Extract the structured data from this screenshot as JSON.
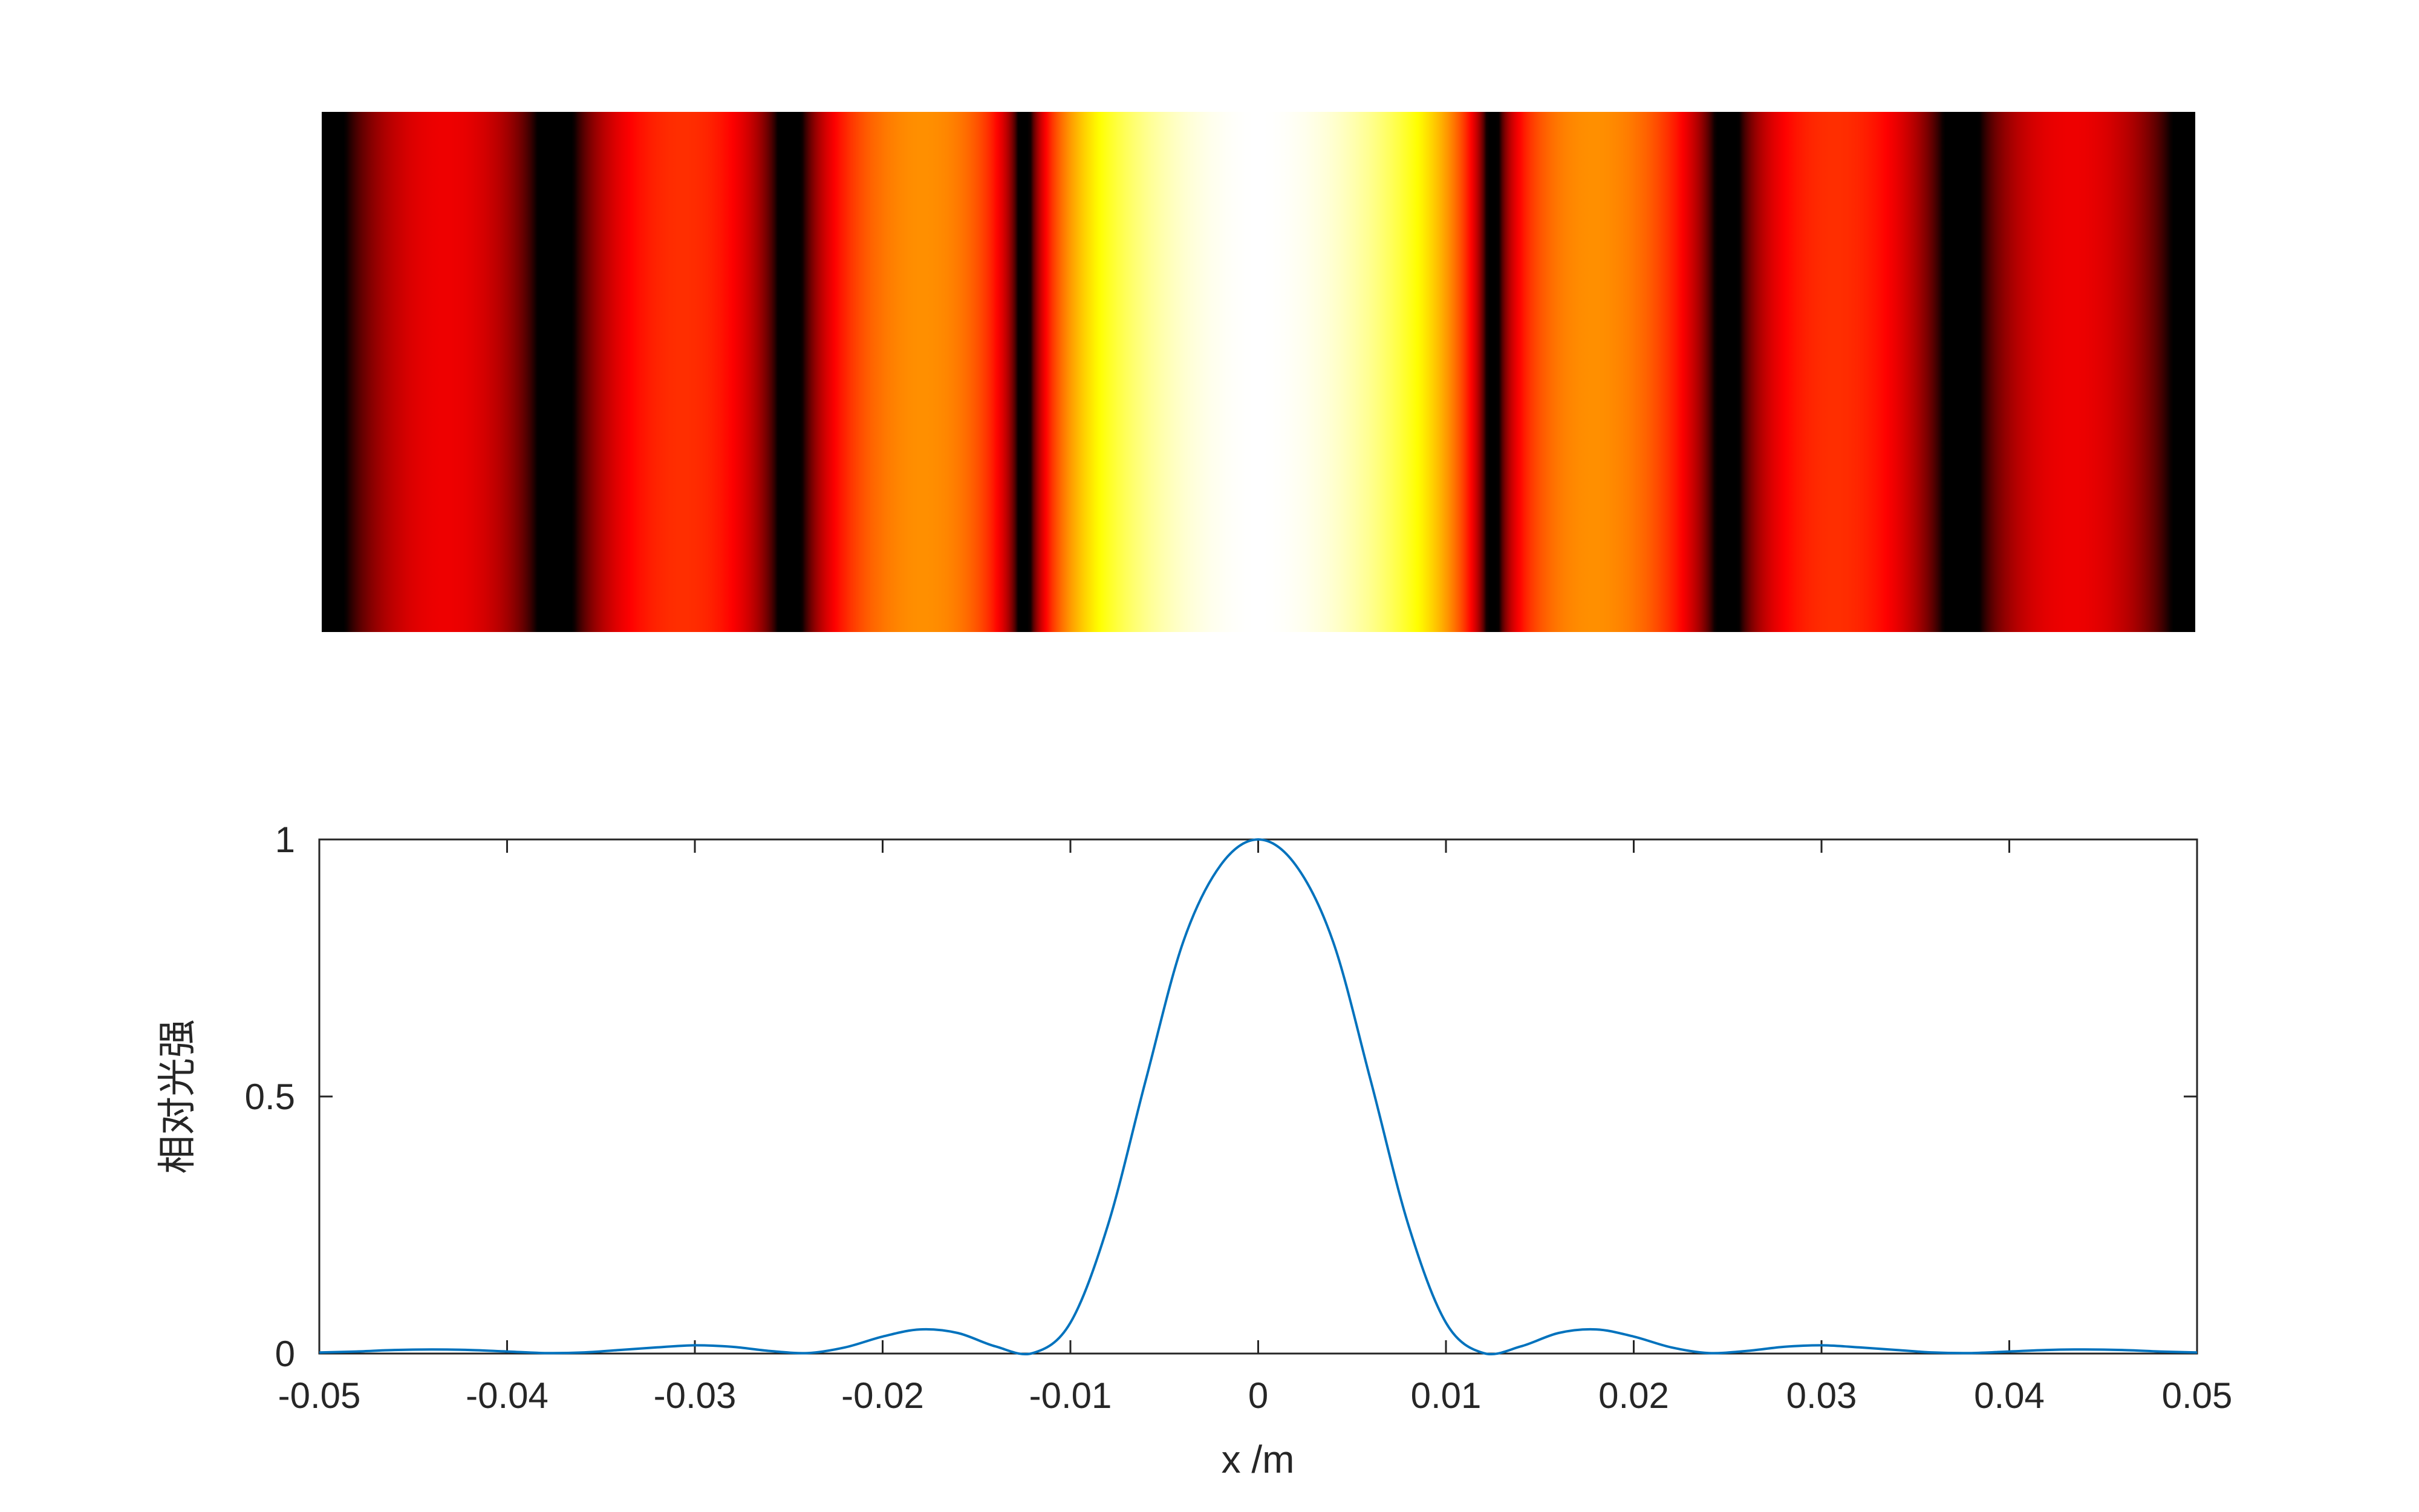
{
  "chart_data": [
    {
      "type": "heatmap",
      "colormap": "hot",
      "x_range": [
        -0.05,
        0.05
      ],
      "intensity_model": "sinc^2",
      "dark_fringes_x": [
        -0.0376,
        -0.0251,
        -0.0125,
        0.0125,
        0.0251,
        0.0376
      ],
      "title": "",
      "xlabel": "",
      "ylabel": "",
      "axis_visible": false
    },
    {
      "type": "line",
      "title": "",
      "xlabel": "x /m",
      "ylabel": "相对光强",
      "xlim": [
        -0.05,
        0.05
      ],
      "ylim": [
        0,
        1
      ],
      "x_ticks": [
        -0.05,
        -0.04,
        -0.03,
        -0.02,
        -0.01,
        0,
        0.01,
        0.02,
        0.03,
        0.04,
        0.05
      ],
      "x_tick_labels": [
        "-0.05",
        "-0.04",
        "-0.03",
        "-0.02",
        "-0.01",
        "0",
        "0.01",
        "0.02",
        "0.03",
        "0.04",
        "0.05"
      ],
      "y_ticks": [
        0,
        0.5,
        1
      ],
      "y_tick_labels": [
        "0",
        "0.5",
        "1"
      ],
      "grid": false,
      "line_color": "#0072BD",
      "series": [
        {
          "x": [
            -0.05,
            -0.048,
            -0.046,
            -0.044,
            -0.042,
            -0.04,
            -0.038,
            -0.036,
            -0.034,
            -0.032,
            -0.03,
            -0.028,
            -0.026,
            -0.024,
            -0.022,
            -0.02,
            -0.018,
            -0.016,
            -0.014,
            -0.012,
            -0.01,
            -0.008,
            -0.006,
            -0.004,
            -0.002,
            0,
            0.002,
            0.004,
            0.006,
            0.008,
            0.01,
            0.012,
            0.014,
            0.016,
            0.018,
            0.02,
            0.022,
            0.024,
            0.026,
            0.028,
            0.03,
            0.032,
            0.034,
            0.036,
            0.038,
            0.04,
            0.042,
            0.044,
            0.046,
            0.048,
            0.05
          ],
          "y": [
            0.002,
            0.004,
            0.007,
            0.008,
            0.007,
            0.004,
            0.001,
            0.002,
            0.007,
            0.012,
            0.016,
            0.013,
            0.005,
            0.001,
            0.012,
            0.033,
            0.047,
            0.04,
            0.014,
            0.001,
            0.06,
            0.25,
            0.53,
            0.8,
            0.95,
            1.0,
            0.95,
            0.8,
            0.53,
            0.25,
            0.06,
            0.001,
            0.014,
            0.04,
            0.047,
            0.033,
            0.012,
            0.001,
            0.005,
            0.013,
            0.016,
            0.012,
            0.007,
            0.002,
            0.001,
            0.004,
            0.007,
            0.008,
            0.007,
            0.004,
            0.002
          ]
        }
      ]
    }
  ]
}
